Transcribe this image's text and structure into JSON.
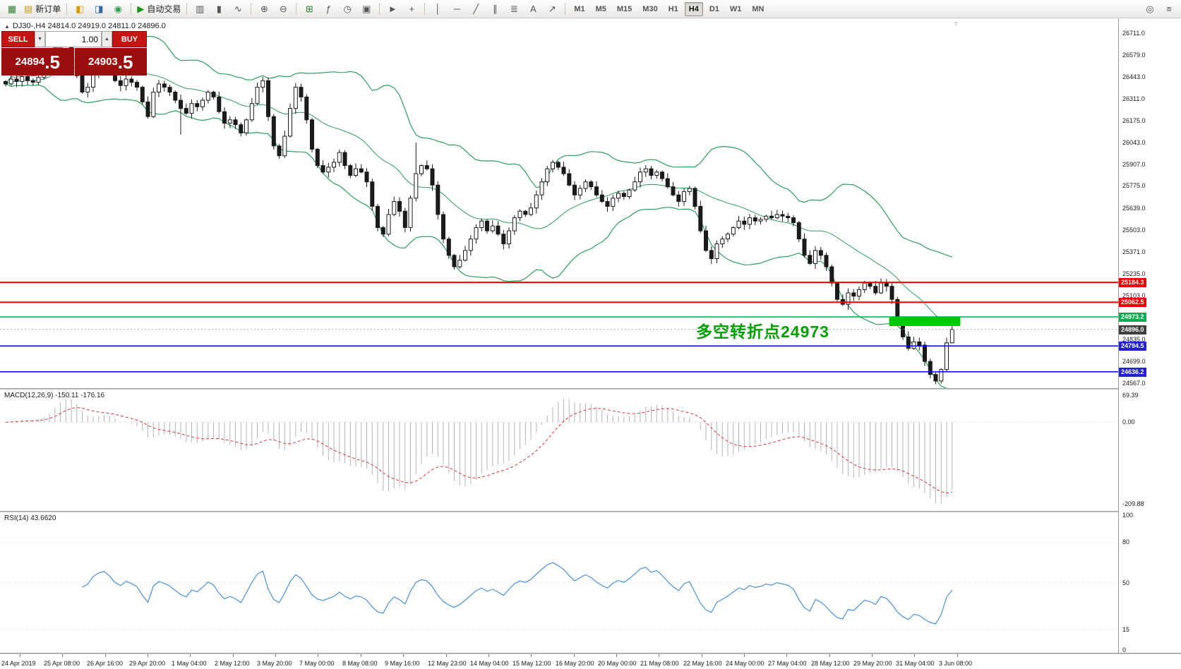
{
  "toolbar": {
    "items": [
      {
        "name": "app-icon",
        "glyph": "▦",
        "color": "#2e7d32"
      },
      {
        "name": "new-order-button",
        "glyph": "▤",
        "color": "#c79b1e",
        "label": "新订单"
      },
      {
        "name": "sep"
      },
      {
        "name": "market-watch-button",
        "glyph": "◧",
        "color": "#d79b00"
      },
      {
        "name": "data-window-button",
        "glyph": "◨",
        "color": "#3465a4"
      },
      {
        "name": "navigator-button",
        "glyph": "◉",
        "color": "#2e9e4f"
      },
      {
        "name": "sep"
      },
      {
        "name": "autotrading-button",
        "glyph": "▶",
        "color": "#149414",
        "label": "自动交易"
      },
      {
        "name": "sep"
      },
      {
        "name": "bar-chart-button",
        "glyph": "▥",
        "color": "#555555"
      },
      {
        "name": "candlestick-chart-button",
        "glyph": "▮",
        "color": "#555555"
      },
      {
        "name": "line-chart-button",
        "glyph": "∿",
        "color": "#555555"
      },
      {
        "name": "sep"
      },
      {
        "name": "zoom-in-button",
        "glyph": "⊕",
        "color": "#555555"
      },
      {
        "name": "zoom-out-button",
        "glyph": "⊖",
        "color": "#555555"
      },
      {
        "name": "sep"
      },
      {
        "name": "tile-windows-button",
        "glyph": "⊞",
        "color": "#2e7d32"
      },
      {
        "name": "indicators-button",
        "glyph": "ƒ",
        "color": "#555555"
      },
      {
        "name": "periods-button",
        "glyph": "◷",
        "color": "#555555"
      },
      {
        "name": "templates-button",
        "glyph": "▣",
        "color": "#555555"
      },
      {
        "name": "sep"
      },
      {
        "name": "cursor-button",
        "glyph": "►",
        "color": "#555555"
      },
      {
        "name": "crosshair-button",
        "glyph": "+",
        "color": "#555555"
      },
      {
        "name": "sep"
      },
      {
        "name": "vertical-line-button",
        "glyph": "│",
        "color": "#555555"
      },
      {
        "name": "horizontal-line-button",
        "glyph": "─",
        "color": "#555555"
      },
      {
        "name": "trendline-button",
        "glyph": "╱",
        "color": "#555555"
      },
      {
        "name": "channel-button",
        "glyph": "∥",
        "color": "#555555"
      },
      {
        "name": "fibonacci-button",
        "glyph": "≣",
        "color": "#555555"
      },
      {
        "name": "text-button",
        "glyph": "A",
        "color": "#555555"
      },
      {
        "name": "arrows-button",
        "glyph": "↗",
        "color": "#555555"
      },
      {
        "name": "sep"
      }
    ],
    "timeframes": [
      "M1",
      "M5",
      "M15",
      "M30",
      "H1",
      "H4",
      "D1",
      "W1",
      "MN"
    ],
    "active_timeframe": "H4",
    "right_items": [
      {
        "name": "search-button",
        "glyph": "◎",
        "color": "#555555"
      },
      {
        "name": "menu-button",
        "glyph": "≡",
        "color": "#555555"
      }
    ]
  },
  "icons": {
    "collapse": "▲",
    "down_arrow": "▼",
    "up_arrow": "▲",
    "shift_marker": "▿"
  },
  "symbol_header": {
    "text": "DJ30-,H4 24814.0 24919.0 24811.0 24896.0"
  },
  "trade_panel": {
    "sell_label": "SELL",
    "buy_label": "BUY",
    "volume": "1.00",
    "sell_price_main": "24894",
    "sell_price_frac": ".5",
    "buy_price_main": "24903",
    "buy_price_frac": ".5"
  },
  "annotation": {
    "text": "多空转折点24973",
    "color": "#00a000"
  },
  "current_price": 24896.0,
  "hlines": [
    {
      "price": 25184.3,
      "color": "#ff0000",
      "width": 2
    },
    {
      "price": 25062.5,
      "color": "#ff0000",
      "width": 2
    },
    {
      "price": 24973.2,
      "color": "#00b050",
      "width": 1.5
    },
    {
      "price": 24794.5,
      "color": "#0000ff",
      "width": 1.5
    },
    {
      "price": 24636.2,
      "color": "#0000ff",
      "width": 1.5
    }
  ],
  "highlight_rect": {
    "bar_start": 161.5,
    "bar_end": 174.5,
    "price_top": 24973,
    "price_bottom": 24917,
    "color": "#00c800"
  },
  "price_axis": {
    "labels": [
      "26711.0",
      "26579.0",
      "26443.0",
      "26311.0",
      "26175.0",
      "26043.0",
      "25907.0",
      "25775.0",
      "25639.0",
      "25503.0",
      "25371.0",
      "25235.0",
      "25103.0",
      "24967.0",
      "24835.0",
      "24699.0",
      "24567.0"
    ]
  },
  "price_tags": [
    {
      "value": "25184.3",
      "price": 25184.3,
      "color": "#e60000"
    },
    {
      "value": "25062.5",
      "price": 25062.5,
      "color": "#e60000"
    },
    {
      "value": "24973.2",
      "price": 24973.2,
      "color": "#00b050"
    },
    {
      "value": "24896.0",
      "price": 24896.0,
      "color": "#404040"
    },
    {
      "value": "24794.5",
      "price": 24794.5,
      "color": "#2222cc"
    },
    {
      "value": "24636.2",
      "price": 24636.2,
      "color": "#2222cc"
    }
  ],
  "macd_panel": {
    "label": "MACD(12,26,9) -150.11 -176.16",
    "axis": [
      "69.39",
      "0.00",
      "-209.88"
    ],
    "max": 69.39,
    "min": -209.88,
    "fast": 12,
    "slow": 26,
    "signal": 9,
    "histogram_color": "#b4b4b4",
    "signal_color": "#e03434"
  },
  "rsi_panel": {
    "label": "RSI(14) 43.6620",
    "axis": [
      "100",
      "80",
      "50",
      "15",
      "0"
    ],
    "max": 100,
    "min": 0,
    "period": 14,
    "levels": [
      80,
      50,
      15
    ],
    "line_color": "#4a90d9"
  },
  "time_axis": [
    "24 Apr 2019",
    "25 Apr 08:00",
    "26 Apr 16:00",
    "29 Apr 20:00",
    "1 May 04:00",
    "2 May 12:00",
    "3 May 20:00",
    "7 May 00:00",
    "8 May 08:00",
    "9 May 16:00",
    "12 May 23:00",
    "14 May 04:00",
    "15 May 12:00",
    "16 May 20:00",
    "20 May 00:00",
    "21 May 08:00",
    "22 May 16:00",
    "24 May 00:00",
    "27 May 04:00",
    "28 May 12:00",
    "29 May 20:00",
    "31 May 04:00",
    "3 Jun 08:00"
  ],
  "chart_data": {
    "type": "candlestick",
    "symbol": "DJ30-",
    "timeframe": "H4",
    "last_bar_ohlc": {
      "open": 24814.0,
      "high": 24919.0,
      "low": 24811.0,
      "close": 24896.0
    },
    "ylim": [
      24567,
      26711
    ],
    "bollinger_period": 20,
    "bollinger_dev": 2,
    "bollinger_color": "#2e9e5b",
    "bull_color": "#ffffff",
    "bear_color": "#1a1a1a",
    "closes": [
      26400,
      26430,
      26415,
      26445,
      26420,
      26410,
      26440,
      26480,
      26560,
      26620,
      26680,
      26650,
      26560,
      26450,
      26350,
      26380,
      26460,
      26500,
      26520,
      26480,
      26420,
      26390,
      26430,
      26410,
      26380,
      26290,
      26200,
      26350,
      26400,
      26380,
      26350,
      26300,
      26250,
      26220,
      26280,
      26260,
      26300,
      26350,
      26320,
      26230,
      26160,
      26180,
      26150,
      26100,
      26180,
      26280,
      26380,
      26420,
      26200,
      26020,
      25960,
      26080,
      26250,
      26380,
      26320,
      26180,
      26000,
      25900,
      25860,
      25890,
      25920,
      25980,
      25900,
      25840,
      25880,
      25860,
      25800,
      25650,
      25520,
      25480,
      25600,
      25680,
      25620,
      25520,
      25700,
      25850,
      25900,
      25880,
      25780,
      25600,
      25450,
      25350,
      25280,
      25320,
      25380,
      25450,
      25520,
      25560,
      25500,
      25530,
      25480,
      25420,
      25500,
      25580,
      25620,
      25600,
      25640,
      25720,
      25800,
      25880,
      25920,
      25890,
      25850,
      25780,
      25720,
      25760,
      25800,
      25770,
      25720,
      25680,
      25650,
      25700,
      25730,
      25710,
      25750,
      25800,
      25860,
      25880,
      25840,
      25860,
      25820,
      25770,
      25720,
      25680,
      25740,
      25760,
      25650,
      25500,
      25380,
      25330,
      25420,
      25450,
      25480,
      25520,
      25560,
      25540,
      25580,
      25560,
      25570,
      25590,
      25580,
      25600,
      25590,
      25580,
      25550,
      25450,
      25350,
      25300,
      25380,
      25350,
      25280,
      25180,
      25080,
      25050,
      25120,
      25100,
      25140,
      25180,
      25160,
      25120,
      25180,
      25160,
      25080,
      24950,
      24850,
      24780,
      24820,
      24800,
      24700,
      24620,
      24580,
      24650,
      24814,
      24896
    ],
    "wick_overrides": {
      "32": {
        "low": 26090
      },
      "75": {
        "high": 26040
      },
      "173": {
        "high": 24919,
        "low": 24811
      }
    }
  }
}
